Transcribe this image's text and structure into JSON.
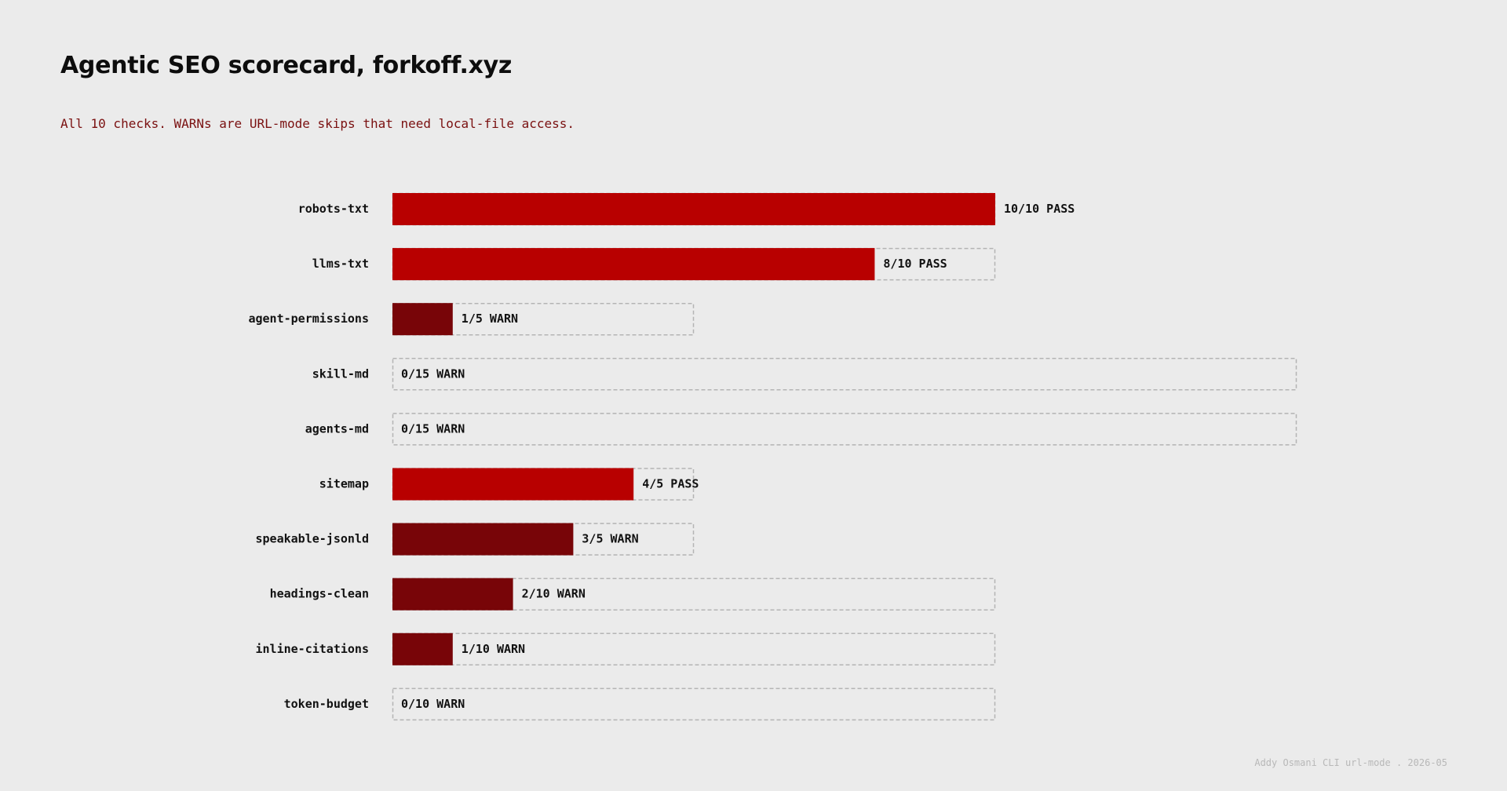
{
  "header": {
    "title": "Agentic SEO scorecard, forkoff.xyz",
    "subtitle": "All 10 checks. WARNs are URL-mode skips that need local-file access."
  },
  "footer": {
    "credit": "Addy Osmani CLI url-mode . 2026-05"
  },
  "colors": {
    "background": "#ebebeb",
    "pass": "#b80000",
    "warn": "#780508",
    "outline": "#b4b4b4",
    "subtitle": "#7a1010"
  },
  "chart_data": {
    "type": "bar",
    "orientation": "horizontal",
    "title": "Agentic SEO scorecard, forkoff.xyz",
    "subtitle": "All 10 checks. WARNs are URL-mode skips that need local-file access.",
    "grid": false,
    "legend": "none",
    "categories": [
      "robots-txt",
      "llms-txt",
      "agent-permissions",
      "skill-md",
      "agents-md",
      "sitemap",
      "speakable-jsonld",
      "headings-clean",
      "inline-citations",
      "token-budget"
    ],
    "values": [
      10,
      8,
      1,
      0,
      0,
      4,
      3,
      2,
      1,
      0
    ],
    "max_scores": [
      10,
      10,
      5,
      15,
      15,
      5,
      5,
      10,
      10,
      10
    ],
    "statuses": [
      "PASS",
      "PASS",
      "WARN",
      "WARN",
      "WARN",
      "PASS",
      "WARN",
      "WARN",
      "WARN",
      "WARN"
    ],
    "value_labels": [
      "10/10 PASS",
      "8/10 PASS",
      "1/5 WARN",
      "0/15 WARN",
      "0/15 WARN",
      "4/5 PASS",
      "3/5 WARN",
      "2/10 WARN",
      "1/10 WARN",
      "0/10 WARN"
    ]
  }
}
